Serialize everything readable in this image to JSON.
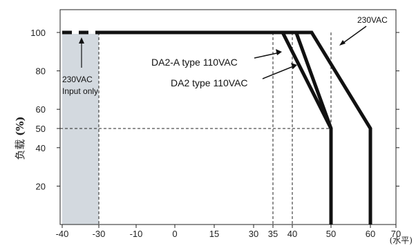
{
  "chart_data": {
    "type": "line",
    "ylabel_prefix": "负载",
    "ylabel_unit": "(%)",
    "xlabel_unit": "(水平)",
    "ylim": [
      0,
      115
    ],
    "x_tick_labels": [
      "-40",
      "-30",
      "-10",
      "0",
      "15",
      "30",
      "35",
      "40",
      "50",
      "60",
      "70"
    ],
    "x_tick_values": [
      -40,
      -30,
      -10,
      0,
      15,
      30,
      35,
      40,
      50,
      60,
      70
    ],
    "y_ticks": [
      20,
      40,
      50,
      60,
      80,
      100
    ],
    "shaded_region": {
      "x": [
        -40,
        -30
      ],
      "label_lines": [
        "230VAC",
        "Input only"
      ]
    },
    "series": [
      {
        "name": "230VAC",
        "x": [
          -30,
          45,
          60,
          60
        ],
        "y": [
          100,
          100,
          50,
          0
        ]
      },
      {
        "name": "DA2-A type 110VAC",
        "x": [
          -30,
          37.5,
          50,
          50
        ],
        "y": [
          100,
          100,
          50,
          0
        ]
      },
      {
        "name": "DA2 type 110VAC",
        "x": [
          -30,
          41,
          50,
          50
        ],
        "y": [
          100,
          100,
          50,
          0
        ]
      }
    ],
    "dashed_segment": {
      "x": [
        -40,
        -30
      ],
      "y": 100
    },
    "reference_lines": [
      {
        "axis": "x",
        "value": -30,
        "y_max": 100
      },
      {
        "axis": "x",
        "value": 35,
        "y_max": 100
      },
      {
        "axis": "x",
        "value": 40,
        "y_max": 100
      },
      {
        "axis": "x",
        "value": 50,
        "y_max": 100
      },
      {
        "axis": "y",
        "value": 50,
        "x_max": 50
      }
    ],
    "grid": false,
    "annotations": {
      "series_230": "230VAC",
      "series_da2a": "DA2-A type 110VAC",
      "series_da2": "DA2 type 110VAC"
    }
  }
}
